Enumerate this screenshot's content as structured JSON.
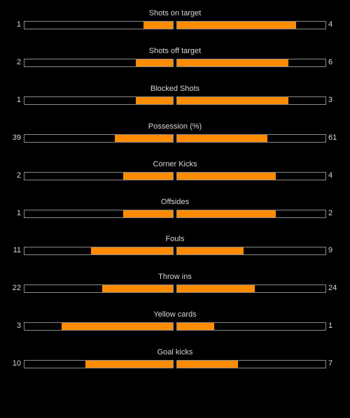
{
  "colors": {
    "background": "#000000",
    "fill": "#ff8c00",
    "border": "#8a8a8a",
    "text": "#d8d8d8"
  },
  "stats": [
    {
      "label": "Shots on target",
      "home": "1",
      "away": "4",
      "home_fill": 0.2,
      "away_fill": 0.8
    },
    {
      "label": "Shots off target",
      "home": "2",
      "away": "6",
      "home_fill": 0.25,
      "away_fill": 0.75
    },
    {
      "label": "Blocked Shots",
      "home": "1",
      "away": "3",
      "home_fill": 0.25,
      "away_fill": 0.75
    },
    {
      "label": "Possession (%)",
      "home": "39",
      "away": "61",
      "home_fill": 0.39,
      "away_fill": 0.61
    },
    {
      "label": "Corner Kicks",
      "home": "2",
      "away": "4",
      "home_fill": 0.333,
      "away_fill": 0.667
    },
    {
      "label": "Offsides",
      "home": "1",
      "away": "2",
      "home_fill": 0.333,
      "away_fill": 0.667
    },
    {
      "label": "Fouls",
      "home": "11",
      "away": "9",
      "home_fill": 0.55,
      "away_fill": 0.45
    },
    {
      "label": "Throw ins",
      "home": "22",
      "away": "24",
      "home_fill": 0.478,
      "away_fill": 0.522
    },
    {
      "label": "Yellow cards",
      "home": "3",
      "away": "1",
      "home_fill": 0.75,
      "away_fill": 0.25
    },
    {
      "label": "Goal kicks",
      "home": "10",
      "away": "7",
      "home_fill": 0.588,
      "away_fill": 0.412
    }
  ]
}
